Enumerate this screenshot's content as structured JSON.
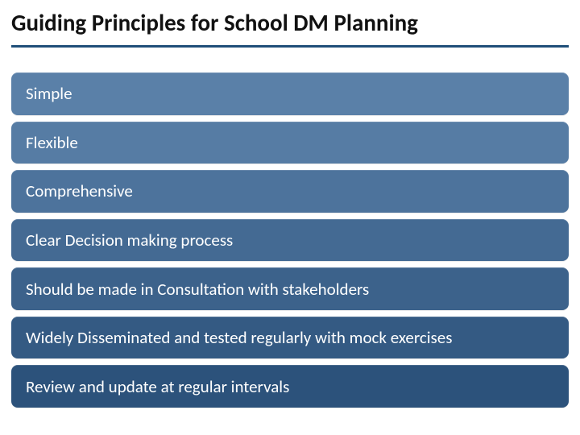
{
  "title": "Guiding Principles for School DM Planning",
  "title_color": "#111111",
  "title_fontsize": 29,
  "underline_color": "#1f4e79",
  "underline_height": 3,
  "background_color": "#ffffff",
  "pill_text_color": "#ffffff",
  "pill_fontsize": 21,
  "pill_radius": 8,
  "principles": [
    {
      "label": "Simple",
      "bg_color": "#5a80a8"
    },
    {
      "label": "Flexible",
      "bg_color": "#567ca4"
    },
    {
      "label": "Comprehensive",
      "bg_color": "#4d739c"
    },
    {
      "label": "Clear Decision making process",
      "bg_color": "#446a93"
    },
    {
      "label": "Should be made in Consultation with stakeholders",
      "bg_color": "#3c628b"
    },
    {
      "label": "Widely Disseminated and tested regularly with mock exercises",
      "bg_color": "#345a83"
    },
    {
      "label": "Review and update at regular intervals",
      "bg_color": "#2c527b"
    }
  ]
}
